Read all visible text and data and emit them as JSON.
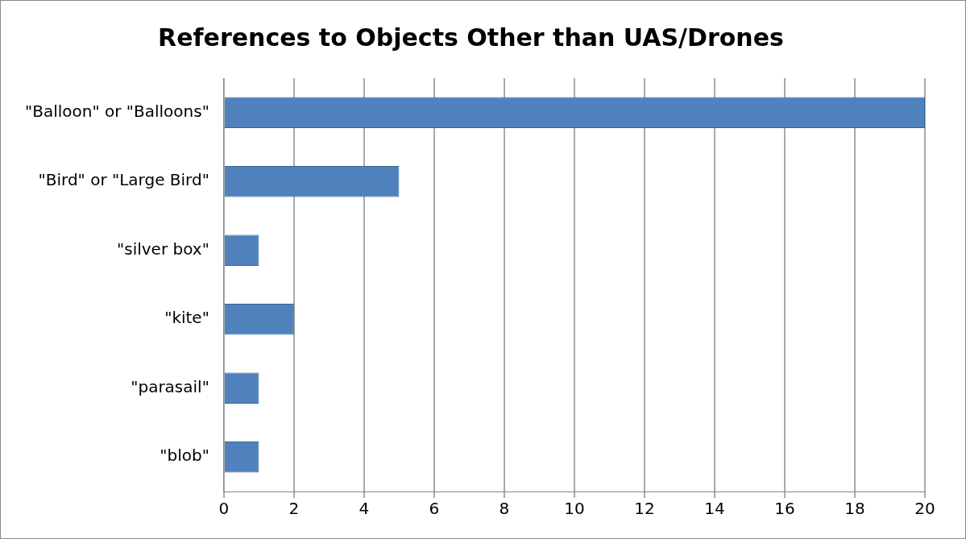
{
  "chart_data": {
    "type": "bar",
    "title": "References to Objects Other than UAS/Drones",
    "orientation": "horizontal",
    "categories": [
      "\"Balloon\" or \"Balloons\"",
      "\"Bird\" or \"Large Bird\"",
      "\"silver box\"",
      "\"kite\"",
      "\"parasail\"",
      "\"blob\""
    ],
    "values": [
      20,
      5,
      1,
      2,
      1,
      1
    ],
    "color": "#4f81bd",
    "xlim": [
      0,
      20
    ],
    "xticks": [
      0,
      2,
      4,
      6,
      8,
      10,
      12,
      14,
      16,
      18,
      20
    ],
    "grid": "x",
    "legend": false
  }
}
